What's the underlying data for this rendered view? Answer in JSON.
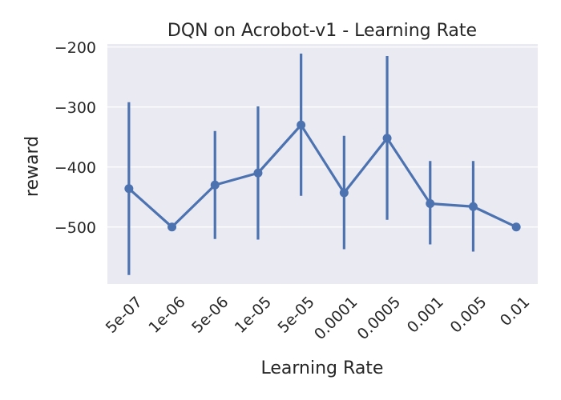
{
  "chart_data": {
    "type": "line",
    "title": "DQN on Acrobot-v1 - Learning Rate",
    "xlabel": "Learning Rate",
    "ylabel": "reward",
    "categories": [
      "5e-07",
      "1e-06",
      "5e-06",
      "1e-05",
      "5e-05",
      "0.0001",
      "0.0005",
      "0.001",
      "0.005",
      "0.01"
    ],
    "series": [
      {
        "values": [
          -436,
          -500,
          -430,
          -410,
          -330,
          -443,
          -352,
          -461,
          -466,
          -500
        ],
        "error_low": [
          -580,
          -500,
          -520,
          -521,
          -448,
          -537,
          -488,
          -529,
          -541,
          -500
        ],
        "error_high": [
          -292,
          -500,
          -340,
          -299,
          -211,
          -348,
          -215,
          -390,
          -390,
          -500
        ],
        "color": "#4c72b0"
      }
    ],
    "y_ticks": [
      "−200",
      "−300",
      "−400",
      "−500"
    ],
    "y_tick_values": [
      -200,
      -300,
      -400,
      -500
    ],
    "ylim": [
      -595,
      -195
    ],
    "grid": true,
    "background": "#eaeaf2",
    "grid_color": "#ffffff"
  }
}
